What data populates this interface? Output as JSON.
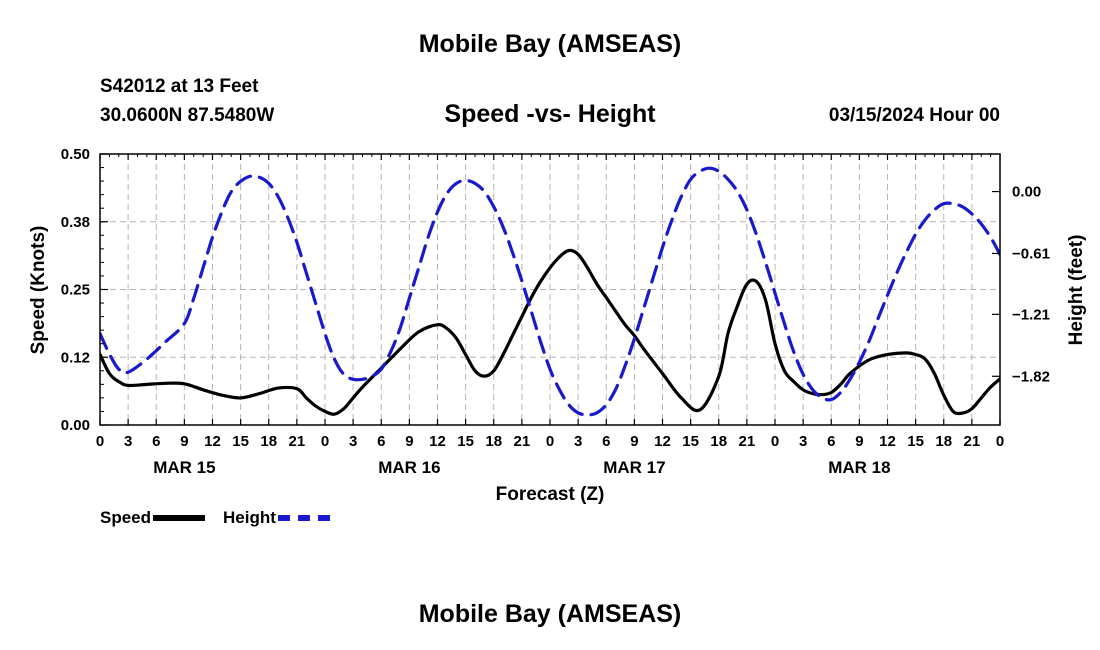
{
  "header": {
    "title": "Mobile Bay (AMSEAS)",
    "station": "S42012 at 13 Feet",
    "coords": "30.0600N  87.5480W",
    "subtitle": "Speed -vs- Height",
    "datetime": "03/15/2024 Hour 00"
  },
  "footer": {
    "title": "Mobile Bay (AMSEAS)"
  },
  "legend": {
    "speed_label": "Speed",
    "height_label": "Height"
  },
  "colors": {
    "speed": "#000000",
    "height": "#1a1acc",
    "grid": "#b4b4b4"
  },
  "chart_data": {
    "type": "line",
    "title": "Speed -vs- Height",
    "xlabel": "Forecast (Z)",
    "ylabel": "Speed (Knots)",
    "y2label": "Height (feet)",
    "x_range": [
      0,
      96
    ],
    "ylim": [
      0,
      0.5
    ],
    "y2lim": [
      -2.3,
      0.37
    ],
    "x_tick_labels": [
      "0",
      "3",
      "6",
      "9",
      "12",
      "15",
      "18",
      "21",
      "0",
      "3",
      "6",
      "9",
      "12",
      "15",
      "18",
      "21",
      "0",
      "3",
      "6",
      "9",
      "12",
      "15",
      "18",
      "21",
      "0",
      "3",
      "6",
      "9",
      "12",
      "15",
      "18",
      "21",
      "0"
    ],
    "date_labels": [
      {
        "label": "MAR 15",
        "x": 9
      },
      {
        "label": "MAR 16",
        "x": 33
      },
      {
        "label": "MAR 17",
        "x": 57
      },
      {
        "label": "MAR 18",
        "x": 81
      }
    ],
    "y_ticks": [
      {
        "value": 0.0,
        "label": "0.00"
      },
      {
        "value": 0.125,
        "label": "0.12"
      },
      {
        "value": 0.25,
        "label": "0.25"
      },
      {
        "value": 0.375,
        "label": "0.38"
      },
      {
        "value": 0.5,
        "label": "0.50"
      }
    ],
    "y2_ticks": [
      {
        "value": 0.0,
        "label": "0.00"
      },
      {
        "value": -0.61,
        "label": "−0.61"
      },
      {
        "value": -1.21,
        "label": "−1.21"
      },
      {
        "value": -1.82,
        "label": "−1.82"
      }
    ],
    "series": [
      {
        "name": "Speed",
        "axis": "left",
        "style": "solid",
        "x": [
          0,
          1,
          2,
          3,
          5,
          7,
          9,
          11,
          13,
          15,
          17,
          19,
          21,
          22,
          23,
          24,
          25,
          26,
          27,
          28,
          30,
          32,
          34,
          36,
          37,
          38,
          39,
          40,
          41,
          42,
          43,
          44,
          45,
          46,
          47,
          48,
          49,
          50,
          51,
          52,
          53,
          54,
          55,
          56,
          57,
          58,
          60,
          62,
          64,
          66,
          67,
          68,
          69,
          70,
          71,
          72,
          73,
          74,
          75,
          76,
          77,
          78,
          79,
          80,
          82,
          84,
          86,
          87,
          88,
          89,
          90,
          91,
          92,
          93,
          94,
          95,
          96
        ],
        "values": [
          0.13,
          0.095,
          0.08,
          0.073,
          0.075,
          0.077,
          0.076,
          0.065,
          0.055,
          0.05,
          0.058,
          0.068,
          0.067,
          0.05,
          0.035,
          0.025,
          0.02,
          0.03,
          0.05,
          0.07,
          0.105,
          0.14,
          0.172,
          0.185,
          0.178,
          0.16,
          0.13,
          0.1,
          0.09,
          0.1,
          0.13,
          0.165,
          0.2,
          0.235,
          0.265,
          0.29,
          0.31,
          0.322,
          0.315,
          0.29,
          0.26,
          0.235,
          0.21,
          0.185,
          0.165,
          0.14,
          0.095,
          0.05,
          0.028,
          0.09,
          0.17,
          0.22,
          0.26,
          0.265,
          0.23,
          0.15,
          0.1,
          0.08,
          0.065,
          0.058,
          0.056,
          0.06,
          0.075,
          0.095,
          0.12,
          0.13,
          0.133,
          0.13,
          0.122,
          0.095,
          0.055,
          0.025,
          0.022,
          0.03,
          0.05,
          0.07,
          0.085
        ]
      },
      {
        "name": "Height",
        "axis": "right",
        "style": "dashed",
        "x": [
          0,
          1,
          2,
          3,
          5,
          7,
          9,
          10,
          11,
          12,
          13,
          14,
          15,
          16,
          17,
          18,
          19,
          20,
          21,
          22,
          23,
          24,
          25,
          26,
          27,
          28,
          29,
          30,
          31,
          32,
          33,
          34,
          35,
          36,
          37,
          38,
          39,
          40,
          41,
          42,
          43,
          44,
          45,
          46,
          47,
          48,
          49,
          50,
          51,
          52,
          53,
          54,
          55,
          56,
          57,
          58,
          59,
          60,
          61,
          62,
          63,
          64,
          65,
          66,
          67,
          68,
          69,
          70,
          71,
          72,
          73,
          74,
          75,
          76,
          77,
          78,
          79,
          80,
          81,
          82,
          83,
          84,
          85,
          86,
          87,
          88,
          89,
          90,
          91,
          92,
          93,
          94,
          95,
          96
        ],
        "values": [
          -1.4,
          -1.6,
          -1.75,
          -1.78,
          -1.65,
          -1.48,
          -1.3,
          -1.05,
          -0.75,
          -0.45,
          -0.2,
          0.0,
          0.1,
          0.15,
          0.14,
          0.08,
          -0.05,
          -0.25,
          -0.5,
          -0.8,
          -1.1,
          -1.4,
          -1.65,
          -1.8,
          -1.85,
          -1.85,
          -1.82,
          -1.75,
          -1.58,
          -1.35,
          -1.05,
          -0.75,
          -0.45,
          -0.2,
          -0.02,
          0.08,
          0.11,
          0.08,
          0.0,
          -0.15,
          -0.35,
          -0.6,
          -0.88,
          -1.18,
          -1.48,
          -1.75,
          -1.95,
          -2.1,
          -2.18,
          -2.2,
          -2.18,
          -2.1,
          -1.95,
          -1.72,
          -1.45,
          -1.15,
          -0.85,
          -0.55,
          -0.28,
          -0.05,
          0.12,
          0.2,
          0.23,
          0.2,
          0.12,
          0.0,
          -0.18,
          -0.42,
          -0.7,
          -1.0,
          -1.3,
          -1.58,
          -1.8,
          -1.95,
          -2.03,
          -2.05,
          -1.98,
          -1.85,
          -1.68,
          -1.48,
          -1.25,
          -1.02,
          -0.8,
          -0.6,
          -0.42,
          -0.28,
          -0.18,
          -0.12,
          -0.12,
          -0.15,
          -0.22,
          -0.32,
          -0.45,
          -0.62
        ]
      }
    ]
  }
}
